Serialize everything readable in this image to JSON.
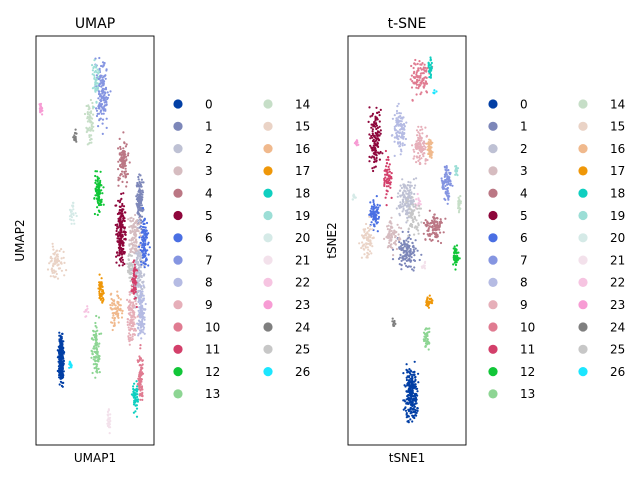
{
  "chart_data": [
    {
      "type": "scatter",
      "title": "UMAP",
      "xlabel": "UMAP1",
      "ylabel": "UMAP2",
      "ticks": "none",
      "legend_position": "right",
      "clusters": [
        {
          "name": "0",
          "color": "#023fa5",
          "x": [
            -5.0,
            -4.2
          ],
          "y": [
            -3.6,
            -1.2
          ],
          "n": 260
        },
        {
          "name": "1",
          "color": "#7d87b9",
          "x": [
            3.0,
            4.0
          ],
          "y": [
            2.0,
            5.0
          ],
          "n": 120
        },
        {
          "name": "2",
          "color": "#bec1d4",
          "x": [
            2.5,
            4.2
          ],
          "y": [
            -0.8,
            2.6
          ],
          "n": 170
        },
        {
          "name": "3",
          "color": "#d6bcc0",
          "x": [
            2.0,
            4.0
          ],
          "y": [
            1.0,
            3.5
          ],
          "n": 90
        },
        {
          "name": "4",
          "color": "#bb7784",
          "x": [
            1.0,
            2.6
          ],
          "y": [
            4.0,
            6.2
          ],
          "n": 110
        },
        {
          "name": "5",
          "color": "#8e063b",
          "x": [
            0.9,
            2.3
          ],
          "y": [
            0.6,
            4.2
          ],
          "n": 200
        },
        {
          "name": "6",
          "color": "#4a6fe3",
          "x": [
            3.4,
            4.6
          ],
          "y": [
            0.6,
            3.4
          ],
          "n": 110
        },
        {
          "name": "7",
          "color": "#8595e1",
          "x": [
            -1.4,
            0.6
          ],
          "y": [
            5.8,
            9.6
          ],
          "n": 150
        },
        {
          "name": "8",
          "color": "#b5bbe3",
          "x": [
            3.1,
            4.3
          ],
          "y": [
            -2.0,
            0.8
          ],
          "n": 110
        },
        {
          "name": "9",
          "color": "#e6afb9",
          "x": [
            2.0,
            3.4
          ],
          "y": [
            -2.2,
            0.6
          ],
          "n": 110
        },
        {
          "name": "10",
          "color": "#e07b91",
          "x": [
            3.2,
            4.0
          ],
          "y": [
            -4.4,
            -1.6
          ],
          "n": 90
        },
        {
          "name": "11",
          "color": "#d33f6a",
          "x": [
            2.6,
            3.3
          ],
          "y": [
            -0.4,
            1.6
          ],
          "n": 60
        },
        {
          "name": "12",
          "color": "#11c638",
          "x": [
            -1.3,
            -0.2
          ],
          "y": [
            2.8,
            5.0
          ],
          "n": 90
        },
        {
          "name": "13",
          "color": "#8dd593",
          "x": [
            -1.6,
            -0.4
          ],
          "y": [
            -3.4,
            -0.6
          ],
          "n": 90
        },
        {
          "name": "14",
          "color": "#c6dec7",
          "x": [
            -2.2,
            -1.0
          ],
          "y": [
            5.2,
            8.0
          ],
          "n": 70
        },
        {
          "name": "15",
          "color": "#ead3c6",
          "x": [
            -6.4,
            -3.8
          ],
          "y": [
            0.2,
            2.4
          ],
          "n": 70
        },
        {
          "name": "16",
          "color": "#f0b98d",
          "x": [
            0.2,
            1.9
          ],
          "y": [
            -1.4,
            0.4
          ],
          "n": 70
        },
        {
          "name": "17",
          "color": "#ef9708",
          "x": [
            -0.9,
            0.0
          ],
          "y": [
            -0.6,
            1.2
          ],
          "n": 50
        },
        {
          "name": "18",
          "color": "#0fcfc0",
          "x": [
            2.6,
            3.6
          ],
          "y": [
            -4.6,
            -3.0
          ],
          "n": 55
        },
        {
          "name": "19",
          "color": "#9cded6",
          "x": [
            -1.6,
            -0.5
          ],
          "y": [
            6.8,
            9.4
          ],
          "n": 40
        },
        {
          "name": "20",
          "color": "#d5eae7",
          "x": [
            -3.8,
            -2.9
          ],
          "y": [
            2.6,
            3.8
          ],
          "n": 25
        },
        {
          "name": "21",
          "color": "#f3e1eb",
          "x": [
            0.1,
            0.6
          ],
          "y": [
            -5.3,
            -3.9
          ],
          "n": 30
        },
        {
          "name": "22",
          "color": "#f6c4e1",
          "x": [
            -2.4,
            -1.6
          ],
          "y": [
            -1.0,
            -0.2
          ],
          "n": 10
        },
        {
          "name": "23",
          "color": "#f79cd4",
          "x": [
            -6.9,
            -6.5
          ],
          "y": [
            6.6,
            7.6
          ],
          "n": 20
        },
        {
          "name": "24",
          "color": "#7f7f7f",
          "x": [
            -3.4,
            -2.9
          ],
          "y": [
            5.6,
            6.4
          ],
          "n": 18
        },
        {
          "name": "25",
          "color": "#c7c7c7",
          "x": [
            2.0,
            3.0
          ],
          "y": [
            0.0,
            2.0
          ],
          "n": 40
        },
        {
          "name": "26",
          "color": "#1ce6ff",
          "x": [
            -3.9,
            -3.4
          ],
          "y": [
            -2.8,
            -2.4
          ],
          "n": 14
        }
      ]
    },
    {
      "type": "scatter",
      "title": "t-SNE",
      "xlabel": "tSNE1",
      "ylabel": "tSNE2",
      "ticks": "none",
      "legend_position": "right",
      "clusters": [
        {
          "name": "0",
          "color": "#023fa5",
          "x": [
            -0.5,
            1.0
          ],
          "y": [
            -7.0,
            -3.5
          ],
          "n": 230
        },
        {
          "name": "1",
          "color": "#7d87b9",
          "x": [
            -1.4,
            1.2
          ],
          "y": [
            0.2,
            2.4
          ],
          "n": 130
        },
        {
          "name": "2",
          "color": "#bec1d4",
          "x": [
            -1.2,
            1.0
          ],
          "y": [
            2.4,
            5.0
          ],
          "n": 150
        },
        {
          "name": "3",
          "color": "#d6bcc0",
          "x": [
            -2.2,
            -0.4
          ],
          "y": [
            1.0,
            3.0
          ],
          "n": 80
        },
        {
          "name": "4",
          "color": "#bb7784",
          "x": [
            1.0,
            3.2
          ],
          "y": [
            1.4,
            3.4
          ],
          "n": 110
        },
        {
          "name": "5",
          "color": "#8e063b",
          "x": [
            -3.4,
            -2.0
          ],
          "y": [
            4.6,
            8.4
          ],
          "n": 130
        },
        {
          "name": "6",
          "color": "#4a6fe3",
          "x": [
            -3.4,
            -2.2
          ],
          "y": [
            2.0,
            4.0
          ],
          "n": 80
        },
        {
          "name": "7",
          "color": "#8595e1",
          "x": [
            2.6,
            3.8
          ],
          "y": [
            3.2,
            5.6
          ],
          "n": 80
        },
        {
          "name": "8",
          "color": "#b5bbe3",
          "x": [
            -1.5,
            0.2
          ],
          "y": [
            5.2,
            8.6
          ],
          "n": 100
        },
        {
          "name": "9",
          "color": "#e6afb9",
          "x": [
            0.2,
            1.8
          ],
          "y": [
            5.0,
            7.4
          ],
          "n": 100
        },
        {
          "name": "10",
          "color": "#e07b91",
          "x": [
            -0.2,
            2.2
          ],
          "y": [
            8.0,
            10.6
          ],
          "n": 100
        },
        {
          "name": "11",
          "color": "#d33f6a",
          "x": [
            -2.2,
            -1.2
          ],
          "y": [
            3.2,
            6.0
          ],
          "n": 60
        },
        {
          "name": "12",
          "color": "#11c638",
          "x": [
            3.6,
            4.3
          ],
          "y": [
            0.4,
            1.8
          ],
          "n": 50
        },
        {
          "name": "13",
          "color": "#8dd593",
          "x": [
            1.2,
            1.9
          ],
          "y": [
            -3.6,
            -1.8
          ],
          "n": 40
        },
        {
          "name": "14",
          "color": "#c6dec7",
          "x": [
            4.0,
            4.5
          ],
          "y": [
            2.8,
            4.0
          ],
          "n": 25
        },
        {
          "name": "15",
          "color": "#ead3c6",
          "x": [
            -4.2,
            -2.6
          ],
          "y": [
            0.6,
            3.0
          ],
          "n": 70
        },
        {
          "name": "16",
          "color": "#f0b98d",
          "x": [
            1.4,
            2.2
          ],
          "y": [
            5.2,
            6.8
          ],
          "n": 45
        },
        {
          "name": "17",
          "color": "#ef9708",
          "x": [
            1.3,
            2.2
          ],
          "y": [
            -1.4,
            -0.6
          ],
          "n": 35
        },
        {
          "name": "18",
          "color": "#0fcfc0",
          "x": [
            1.6,
            2.1
          ],
          "y": [
            9.0,
            10.4
          ],
          "n": 30
        },
        {
          "name": "19",
          "color": "#9cded6",
          "x": [
            3.8,
            4.2
          ],
          "y": [
            4.6,
            5.4
          ],
          "n": 15
        },
        {
          "name": "20",
          "color": "#d5eae7",
          "x": [
            -4.7,
            -4.3
          ],
          "y": [
            3.6,
            4.0
          ],
          "n": 12
        },
        {
          "name": "21",
          "color": "#f3e1eb",
          "x": [
            1.0,
            1.6
          ],
          "y": [
            0.4,
            1.0
          ],
          "n": 12
        },
        {
          "name": "22",
          "color": "#f6c4e1",
          "x": [
            0.4,
            1.4
          ],
          "y": [
            3.0,
            4.0
          ],
          "n": 15
        },
        {
          "name": "23",
          "color": "#f79cd4",
          "x": [
            -4.5,
            -4.1
          ],
          "y": [
            6.0,
            6.6
          ],
          "n": 14
        },
        {
          "name": "24",
          "color": "#7f7f7f",
          "x": [
            -1.4,
            -1.0
          ],
          "y": [
            -2.4,
            -1.6
          ],
          "n": 12
        },
        {
          "name": "25",
          "color": "#c7c7c7",
          "x": [
            -0.4,
            1.4
          ],
          "y": [
            1.6,
            4.2
          ],
          "n": 60
        },
        {
          "name": "26",
          "color": "#1ce6ff",
          "x": [
            2.0,
            2.4
          ],
          "y": [
            8.4,
            8.8
          ],
          "n": 6
        }
      ]
    }
  ]
}
